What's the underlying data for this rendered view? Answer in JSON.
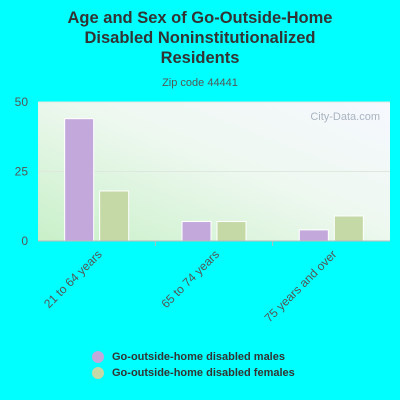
{
  "chart_data": {
    "type": "bar",
    "title": "Age and Sex of Go-Outside-Home Disabled Noninstitutionalized Residents",
    "title_lines": [
      "Age and Sex of Go-Outside-Home",
      "Disabled Noninstitutionalized",
      "Residents"
    ],
    "subtitle": "Zip code 44441",
    "categories": [
      "21 to 64 years",
      "65 to 74 years",
      "75 years and over"
    ],
    "series": [
      {
        "name": "Go-outside-home disabled males",
        "color": "#c3a8dc",
        "values": [
          44,
          7,
          4
        ]
      },
      {
        "name": "Go-outside-home disabled females",
        "color": "#c4d9a6",
        "values": [
          18,
          7,
          9
        ]
      }
    ],
    "ylim": [
      0,
      50
    ],
    "yticks": [
      0,
      25,
      50
    ],
    "xlabel": "",
    "ylabel": "",
    "grid": true,
    "legend_position": "bottom",
    "watermark": "City-Data.com"
  }
}
